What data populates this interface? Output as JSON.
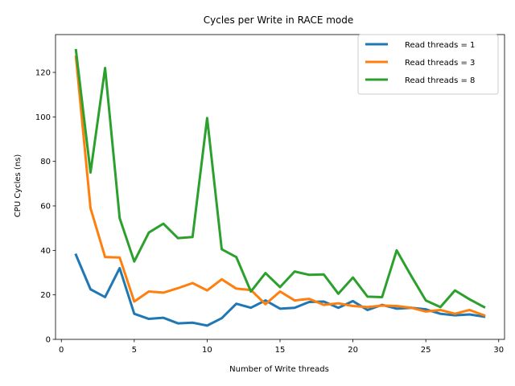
{
  "chart_data": {
    "type": "line",
    "title": "Cycles per Write in RACE mode",
    "xlabel": "Number of Write threads",
    "ylabel": "CPU Cycles (ns)",
    "xlim": [
      -0.4,
      30.4
    ],
    "ylim": [
      0,
      137
    ],
    "xticks": [
      0,
      5,
      10,
      15,
      20,
      25,
      30
    ],
    "yticks": [
      0,
      20,
      40,
      60,
      80,
      100,
      120
    ],
    "grid": false,
    "legend_position": "top-right",
    "x": [
      1,
      2,
      3,
      4,
      5,
      6,
      7,
      8,
      9,
      10,
      11,
      12,
      13,
      14,
      15,
      16,
      17,
      18,
      19,
      20,
      21,
      22,
      23,
      24,
      25,
      26,
      27,
      28,
      29
    ],
    "series": [
      {
        "name": "Read threads = 1",
        "color": "#1f77b4",
        "values": [
          38,
          22.5,
          19,
          32,
          11.5,
          9.2,
          9.7,
          7.2,
          7.5,
          6.2,
          9.5,
          16,
          14.2,
          17.5,
          13.8,
          14.2,
          16.8,
          17,
          14.2,
          17.2,
          13.2,
          15.5,
          13.8,
          14.2,
          13.5,
          11.5,
          10.8,
          11.2,
          10.2
        ]
      },
      {
        "name": "Read threads = 3",
        "color": "#ff7f0e",
        "values": [
          127,
          59,
          37,
          36.8,
          17,
          21.5,
          21,
          23,
          25.3,
          22,
          27,
          22.8,
          22.2,
          15.8,
          21.5,
          17.5,
          18.2,
          15.5,
          16.2,
          15,
          14.5,
          15.2,
          15,
          14.2,
          12.5,
          13.2,
          11.5,
          13.2,
          10.8
        ]
      },
      {
        "name": "Read threads = 8",
        "color": "#2ca02c",
        "values": [
          130,
          75,
          122,
          54.5,
          35,
          48,
          52,
          45.5,
          46,
          99.5,
          40.5,
          37,
          21.5,
          29.8,
          23.5,
          30.5,
          29,
          29.2,
          20.5,
          27.8,
          19.2,
          19,
          40,
          28.5,
          17.5,
          14.5,
          22,
          18,
          14.5
        ]
      }
    ]
  }
}
